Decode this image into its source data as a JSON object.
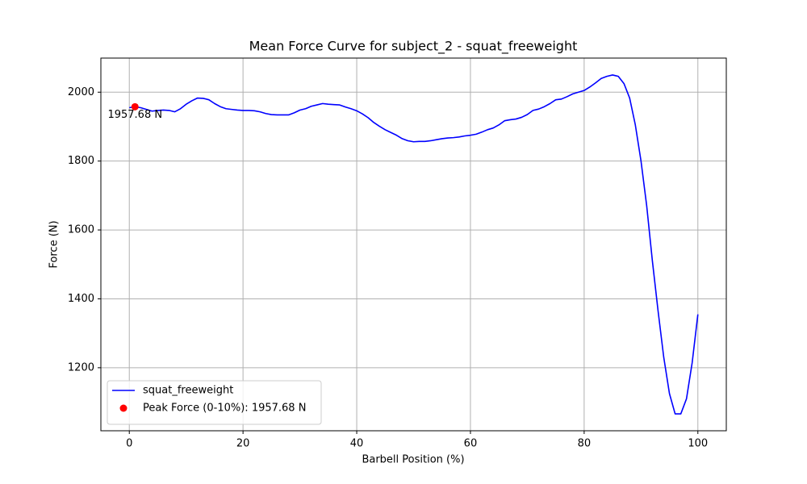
{
  "chart_data": {
    "type": "line",
    "title": "Mean Force Curve for subject_2 - squat_freeweight",
    "x_label": "Barbell Position (%)",
    "y_label": "Force (N)",
    "xlim": [
      -5,
      105
    ],
    "ylim": [
      1017,
      2099
    ],
    "xticks": [
      0,
      20,
      40,
      60,
      80,
      100
    ],
    "yticks": [
      1200,
      1400,
      1600,
      1800,
      2000
    ],
    "grid": true,
    "legend": "lower left",
    "x": [
      0,
      1,
      2,
      3,
      4,
      5,
      6,
      7,
      8,
      9,
      10,
      11,
      12,
      13,
      14,
      15,
      16,
      17,
      18,
      19,
      20,
      21,
      22,
      23,
      24,
      25,
      26,
      27,
      28,
      29,
      30,
      31,
      32,
      33,
      34,
      35,
      36,
      37,
      38,
      39,
      40,
      41,
      42,
      43,
      44,
      45,
      46,
      47,
      48,
      49,
      50,
      51,
      52,
      53,
      54,
      55,
      56,
      57,
      58,
      59,
      60,
      61,
      62,
      63,
      64,
      65,
      66,
      67,
      68,
      69,
      70,
      71,
      72,
      73,
      74,
      75,
      76,
      77,
      78,
      79,
      80,
      81,
      82,
      83,
      84,
      85,
      86,
      87,
      88,
      89,
      90,
      91,
      92,
      93,
      94,
      95,
      96,
      97,
      98,
      99,
      100
    ],
    "series": [
      {
        "name": "squat_freeweight",
        "color": "#0000ff",
        "values": [
          1955,
          1957.68,
          1955,
          1950,
          1945,
          1947,
          1948,
          1947,
          1943,
          1952,
          1965,
          1975,
          1983,
          1982,
          1978,
          1967,
          1958,
          1952,
          1950,
          1948,
          1947,
          1947,
          1946,
          1943,
          1938,
          1935,
          1934,
          1934,
          1934,
          1940,
          1948,
          1952,
          1959,
          1963,
          1967,
          1965,
          1964,
          1963,
          1957,
          1952,
          1946,
          1937,
          1926,
          1912,
          1901,
          1891,
          1883,
          1875,
          1865,
          1859,
          1856,
          1857,
          1857,
          1859,
          1862,
          1865,
          1867,
          1868,
          1870,
          1873,
          1875,
          1878,
          1884,
          1891,
          1896,
          1905,
          1917,
          1920,
          1922,
          1927,
          1935,
          1947,
          1951,
          1958,
          1967,
          1978,
          1980,
          1987,
          1995,
          2000,
          2005,
          2015,
          2027,
          2040,
          2046,
          2050,
          2046,
          2025,
          1983,
          1905,
          1800,
          1670,
          1510,
          1365,
          1230,
          1125,
          1066,
          1066,
          1110,
          1215,
          1355
        ]
      }
    ],
    "peak": {
      "name": "Peak Force (0-10%): 1957.68 N",
      "color": "#ff0000",
      "x": 1,
      "value": 1957.68,
      "value_label": "1957.68 N"
    }
  }
}
